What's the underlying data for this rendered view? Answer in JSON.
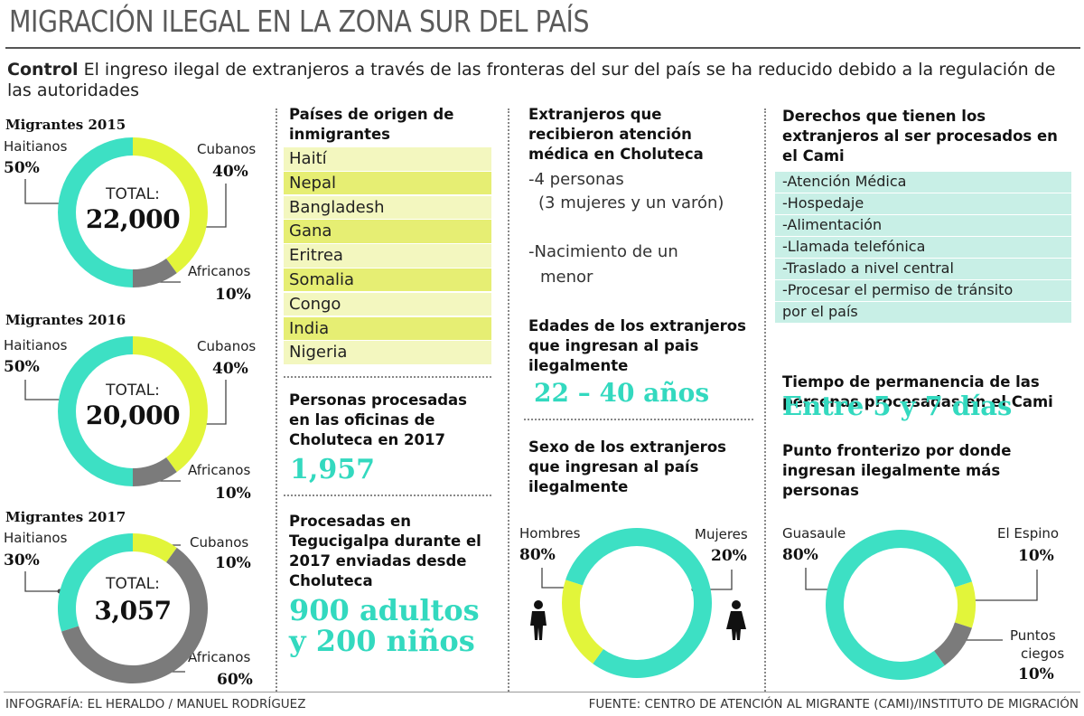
{
  "header": {
    "title": "MIGRACIÓN ILEGAL EN LA ZONA SUR DEL PAÍS",
    "intro_bold": "Control",
    "intro_text": " El ingreso ilegal de extranjeros a través de las fronteras del sur del país se ha reducido debido a la regulación de las autoridades"
  },
  "colors": {
    "haitianos": "#3de0c4",
    "cubanos": "#e2f53a",
    "africanos": "#7b7b7b",
    "accent": "#33d9bf"
  },
  "chart_data": [
    {
      "type": "pie",
      "title": "Migrantes 2015",
      "center_label": "TOTAL:",
      "total": "22,000",
      "slices": [
        {
          "name": "Haitianos",
          "value": 50,
          "label": "50%"
        },
        {
          "name": "Cubanos",
          "value": 40,
          "label": "40%"
        },
        {
          "name": "Africanos",
          "value": 10,
          "label": "10%"
        }
      ]
    },
    {
      "type": "pie",
      "title": "Migrantes 2016",
      "center_label": "TOTAL:",
      "total": "20,000",
      "slices": [
        {
          "name": "Haitianos",
          "value": 50,
          "label": "50%"
        },
        {
          "name": "Cubanos",
          "value": 40,
          "label": "40%"
        },
        {
          "name": "Africanos",
          "value": 10,
          "label": "10%"
        }
      ]
    },
    {
      "type": "pie",
      "title": "Migrantes 2017",
      "center_label": "TOTAL:",
      "total": "3,057",
      "slices": [
        {
          "name": "Haitianos",
          "value": 30,
          "label": "30%"
        },
        {
          "name": "Cubanos",
          "value": 10,
          "label": "10%"
        },
        {
          "name": "Africanos",
          "value": 60,
          "label": "60%"
        }
      ]
    },
    {
      "type": "pie",
      "title": "Sexo de los extranjeros que ingresan al país ilegalmente",
      "slices": [
        {
          "name": "Hombres",
          "value": 80,
          "label": "80%"
        },
        {
          "name": "Mujeres",
          "value": 20,
          "label": "20%"
        }
      ]
    },
    {
      "type": "pie",
      "title": "Punto fronterizo por donde ingresan ilegalmente más personas",
      "slices": [
        {
          "name": "Guasaule",
          "value": 80,
          "label": "80%"
        },
        {
          "name": "El Espino",
          "value": 10,
          "label": "10%"
        },
        {
          "name": "Puntos ciegos",
          "value": 10,
          "label": "10%"
        }
      ]
    }
  ],
  "paises": {
    "heading": "Países de origen de inmigrantes",
    "items": [
      "Haití",
      "Nepal",
      "Bangladesh",
      "Gana",
      "Eritrea",
      "Somalia",
      "Congo",
      "India",
      "Nigeria"
    ]
  },
  "procesadas_choluteca": {
    "heading": "Personas procesadas en las oficinas de Choluteca en 2017",
    "value": "1,957"
  },
  "procesadas_tegucigalpa": {
    "heading": "Procesadas en Tegucigalpa durante el 2017 enviadas desde Choluteca",
    "line1": "900 adultos",
    "line2": "y 200 niños"
  },
  "atencion": {
    "heading": "Extranjeros que recibieron atención médica en Choluteca",
    "item1": "-4 personas",
    "item1b": "(3 mujeres y un varón)",
    "item2": "-Nacimiento de un",
    "item2b": "menor"
  },
  "edades": {
    "heading": "Edades de los extranjeros que ingresan al pais ilegalmente",
    "value": "22 – 40 años"
  },
  "sexo": {
    "heading": "Sexo de los extranjeros que ingresan al país ilegalmente"
  },
  "derechos": {
    "heading": "Derechos que tienen los extranjeros al ser procesados en el Cami",
    "items": [
      "-Atención Médica",
      "-Hospedaje",
      "-Alimentación",
      "-Llamada telefónica",
      "-Traslado a nivel central",
      "-Procesar el permiso de tránsito",
      "por el país"
    ]
  },
  "tiempo": {
    "heading": "Tiempo de permanencia de las personas procesadas en el Cami",
    "value": "Entre 5 y 7 días"
  },
  "punto": {
    "heading": "Punto fronterizo por donde ingresan ilegalmente más personas",
    "puntos_line1": "Puntos",
    "puntos_line2": "ciegos"
  },
  "footer": {
    "left": "INFOGRAFÍA: EL HERALDO / MANUEL RODRÍGUEZ",
    "right": "FUENTE: CENTRO DE ATENCIÓN AL MIGRANTE (CAMI)/INSTITUTO DE MIGRACIÓN"
  }
}
